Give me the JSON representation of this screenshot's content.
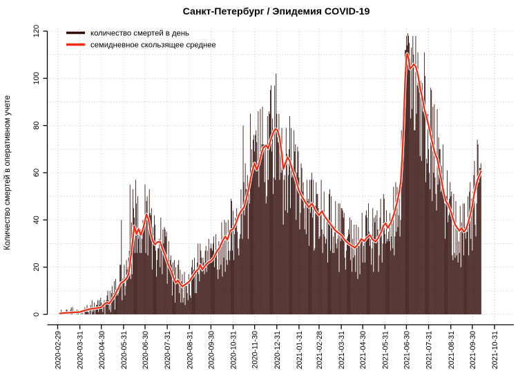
{
  "title": "Санкт-Петербург / Эпидемия COVID-19",
  "y_axis": {
    "label": "Количество смертей в оперативном учете",
    "ticks": [
      0,
      20,
      40,
      60,
      80,
      100,
      120
    ],
    "grid_step_minor": 10,
    "range": [
      0,
      120
    ]
  },
  "x_axis": {
    "tick_labels": [
      "2020-02-29",
      "2020-03-31",
      "2020-04-30",
      "2020-05-31",
      "2020-06-30",
      "2020-07-31",
      "2020-08-31",
      "2020-09-30",
      "2020-10-31",
      "2020-11-30",
      "2020-12-31",
      "2021-01-31",
      "2021-02-28",
      "2021-03-31",
      "2021-04-30",
      "2021-05-31",
      "2021-06-30",
      "2021-07-31",
      "2021-08-31",
      "2021-09-30",
      "2021-10-31"
    ]
  },
  "legend": {
    "items": [
      {
        "label": "количество смертей в день",
        "color": "#320c08"
      },
      {
        "label": "семидневное скользящее среднее",
        "color": "#f32b13"
      }
    ]
  },
  "colors": {
    "bars": "#300b08",
    "avg_line": "#f32b13",
    "avg_line_halo": "#ffffff",
    "grid": "#c3c3c3",
    "axis": "#000000"
  },
  "chart_data": {
    "type": "bar",
    "overlay": "line",
    "x_range": [
      "2020-03-03",
      "2021-10-12"
    ],
    "ylim": [
      0,
      120
    ],
    "grid": true,
    "legend_position": "top-left",
    "series": [
      {
        "name": "количество смертей в день",
        "type": "bar",
        "color": "#300b08",
        "note": "daily values fluctuate around the 7-day mean; extremes pinned in bar_overrides"
      },
      {
        "name": "семидневное скользящее среднее",
        "type": "line",
        "color": "#f32b13",
        "keypoints": [
          [
            "2020-03-03",
            0.4
          ],
          [
            "2020-03-10",
            0.6
          ],
          [
            "2020-03-20",
            0.8
          ],
          [
            "2020-03-31",
            1.0
          ],
          [
            "2020-04-08",
            1.8
          ],
          [
            "2020-04-15",
            2.3
          ],
          [
            "2020-04-22",
            2.6
          ],
          [
            "2020-04-30",
            3.0
          ],
          [
            "2020-05-05",
            4.6
          ],
          [
            "2020-05-08",
            5.0
          ],
          [
            "2020-05-11",
            4.6
          ],
          [
            "2020-05-15",
            6.4
          ],
          [
            "2020-05-18",
            7.6
          ],
          [
            "2020-05-21",
            9.6
          ],
          [
            "2020-05-24",
            11.2
          ],
          [
            "2020-05-27",
            13.2
          ],
          [
            "2020-05-31",
            14.0
          ],
          [
            "2020-06-04",
            15.2
          ],
          [
            "2020-06-07",
            17.0
          ],
          [
            "2020-06-10",
            24.0
          ],
          [
            "2020-06-13",
            32.0
          ],
          [
            "2020-06-15",
            37.4
          ],
          [
            "2020-06-18",
            34.0
          ],
          [
            "2020-06-21",
            36.2
          ],
          [
            "2020-06-24",
            33.6
          ],
          [
            "2020-06-27",
            36.0
          ],
          [
            "2020-06-29",
            38.6
          ],
          [
            "2020-07-02",
            42.4
          ],
          [
            "2020-07-05",
            40.0
          ],
          [
            "2020-07-08",
            34.2
          ],
          [
            "2020-07-11",
            31.0
          ],
          [
            "2020-07-14",
            29.6
          ],
          [
            "2020-07-17",
            30.6
          ],
          [
            "2020-07-21",
            30.8
          ],
          [
            "2020-07-24",
            28.0
          ],
          [
            "2020-07-28",
            25.0
          ],
          [
            "2020-08-01",
            21.4
          ],
          [
            "2020-08-05",
            18.8
          ],
          [
            "2020-08-09",
            15.4
          ],
          [
            "2020-08-12",
            13.4
          ],
          [
            "2020-08-15",
            14.4
          ],
          [
            "2020-08-18",
            12.9
          ],
          [
            "2020-08-21",
            11.8
          ],
          [
            "2020-08-25",
            12.6
          ],
          [
            "2020-08-31",
            14.0
          ],
          [
            "2020-09-05",
            16.4
          ],
          [
            "2020-09-09",
            18.2
          ],
          [
            "2020-09-13",
            19.4
          ],
          [
            "2020-09-15",
            21.0
          ],
          [
            "2020-09-18",
            19.0
          ],
          [
            "2020-09-22",
            20.6
          ],
          [
            "2020-09-26",
            22.0
          ],
          [
            "2020-09-30",
            22.6
          ],
          [
            "2020-10-04",
            24.0
          ],
          [
            "2020-10-08",
            26.6
          ],
          [
            "2020-10-12",
            28.2
          ],
          [
            "2020-10-16",
            31.0
          ],
          [
            "2020-10-20",
            33.0
          ],
          [
            "2020-10-23",
            31.6
          ],
          [
            "2020-10-27",
            35.4
          ],
          [
            "2020-10-31",
            36.2
          ],
          [
            "2020-11-04",
            38.6
          ],
          [
            "2020-11-08",
            42.0
          ],
          [
            "2020-11-12",
            44.2
          ],
          [
            "2020-11-15",
            45.2
          ],
          [
            "2020-11-18",
            48.6
          ],
          [
            "2020-11-22",
            53.6
          ],
          [
            "2020-11-26",
            60.0
          ],
          [
            "2020-11-30",
            64.0
          ],
          [
            "2020-12-03",
            61.2
          ],
          [
            "2020-12-06",
            63.6
          ],
          [
            "2020-12-09",
            67.6
          ],
          [
            "2020-12-12",
            70.6
          ],
          [
            "2020-12-16",
            71.6
          ],
          [
            "2020-12-19",
            70.2
          ],
          [
            "2020-12-22",
            73.6
          ],
          [
            "2020-12-26",
            77.0
          ],
          [
            "2020-12-29",
            78.6
          ],
          [
            "2021-01-01",
            78.0
          ],
          [
            "2021-01-04",
            74.6
          ],
          [
            "2021-01-07",
            68.0
          ],
          [
            "2021-01-09",
            61.6
          ],
          [
            "2021-01-12",
            64.0
          ],
          [
            "2021-01-15",
            66.6
          ],
          [
            "2021-01-18",
            65.0
          ],
          [
            "2021-01-22",
            61.0
          ],
          [
            "2021-01-26",
            57.6
          ],
          [
            "2021-01-31",
            52.4
          ],
          [
            "2021-02-04",
            50.0
          ],
          [
            "2021-02-09",
            47.4
          ],
          [
            "2021-02-14",
            45.4
          ],
          [
            "2021-02-18",
            47.0
          ],
          [
            "2021-02-23",
            44.0
          ],
          [
            "2021-02-28",
            42.0
          ],
          [
            "2021-03-04",
            43.8
          ],
          [
            "2021-03-08",
            41.4
          ],
          [
            "2021-03-13",
            39.4
          ],
          [
            "2021-03-18",
            37.4
          ],
          [
            "2021-03-23",
            35.4
          ],
          [
            "2021-03-31",
            33.6
          ],
          [
            "2021-04-05",
            31.4
          ],
          [
            "2021-04-10",
            30.0
          ],
          [
            "2021-04-15",
            29.0
          ],
          [
            "2021-04-19",
            28.2
          ],
          [
            "2021-04-24",
            30.0
          ],
          [
            "2021-04-28",
            32.0
          ],
          [
            "2021-05-02",
            31.0
          ],
          [
            "2021-05-06",
            32.6
          ],
          [
            "2021-05-10",
            33.6
          ],
          [
            "2021-05-14",
            31.6
          ],
          [
            "2021-05-18",
            30.8
          ],
          [
            "2021-05-22",
            32.6
          ],
          [
            "2021-05-26",
            35.0
          ],
          [
            "2021-05-29",
            37.6
          ],
          [
            "2021-06-01",
            38.6
          ],
          [
            "2021-06-04",
            36.6
          ],
          [
            "2021-06-08",
            38.6
          ],
          [
            "2021-06-11",
            41.0
          ],
          [
            "2021-06-14",
            44.0
          ],
          [
            "2021-06-17",
            47.6
          ],
          [
            "2021-06-20",
            52.0
          ],
          [
            "2021-06-22",
            56.0
          ],
          [
            "2021-06-24",
            66.0
          ],
          [
            "2021-06-26",
            80.0
          ],
          [
            "2021-06-28",
            98.0
          ],
          [
            "2021-06-30",
            109.0
          ],
          [
            "2021-07-01",
            110.4
          ],
          [
            "2021-07-03",
            108.4
          ],
          [
            "2021-07-05",
            104.0
          ],
          [
            "2021-07-08",
            105.0
          ],
          [
            "2021-07-10",
            106.0
          ],
          [
            "2021-07-13",
            105.0
          ],
          [
            "2021-07-16",
            101.6
          ],
          [
            "2021-07-19",
            96.0
          ],
          [
            "2021-07-22",
            92.0
          ],
          [
            "2021-07-25",
            87.0
          ],
          [
            "2021-07-28",
            83.6
          ],
          [
            "2021-07-31",
            80.0
          ],
          [
            "2021-08-03",
            75.6
          ],
          [
            "2021-08-06",
            71.6
          ],
          [
            "2021-08-09",
            68.0
          ],
          [
            "2021-08-12",
            66.0
          ],
          [
            "2021-08-15",
            61.0
          ],
          [
            "2021-08-18",
            56.6
          ],
          [
            "2021-08-21",
            51.6
          ],
          [
            "2021-08-24",
            48.0
          ],
          [
            "2021-08-27",
            46.6
          ],
          [
            "2021-08-31",
            43.6
          ],
          [
            "2021-09-03",
            40.6
          ],
          [
            "2021-09-06",
            38.0
          ],
          [
            "2021-09-09",
            36.6
          ],
          [
            "2021-09-12",
            35.4
          ],
          [
            "2021-09-15",
            36.6
          ],
          [
            "2021-09-18",
            35.0
          ],
          [
            "2021-09-21",
            36.0
          ],
          [
            "2021-09-24",
            38.6
          ],
          [
            "2021-09-27",
            42.0
          ],
          [
            "2021-09-30",
            46.0
          ],
          [
            "2021-10-02",
            50.0
          ],
          [
            "2021-10-04",
            53.0
          ],
          [
            "2021-10-06",
            55.6
          ],
          [
            "2021-10-08",
            57.6
          ],
          [
            "2021-10-10",
            59.0
          ],
          [
            "2021-10-12",
            60.6
          ]
        ]
      }
    ],
    "bar_overrides": {
      "2020-05-28": 40,
      "2020-06-09": 55,
      "2020-06-13": 53,
      "2020-06-17": 57,
      "2020-06-20": 50,
      "2020-07-03": 50,
      "2020-11-14": 80,
      "2020-11-24": 85,
      "2020-12-05": 86,
      "2020-12-11": 88,
      "2020-12-18": 84,
      "2020-12-25": 83,
      "2020-12-27": 58,
      "2021-01-03": 85,
      "2021-01-09": 38,
      "2021-06-29": 112,
      "2021-07-02": 119,
      "2021-07-04": 115,
      "2021-07-07": 113,
      "2021-07-10": 110,
      "2021-09-26": 52,
      "2021-10-11": 62,
      "2021-10-12": 64
    },
    "render_hints": {
      "seed": 20211012,
      "noise_up": [
        2.2,
        0.05
      ],
      "noise_down": [
        2.2,
        0.1
      ],
      "bar_max_clamp": 118
    }
  }
}
